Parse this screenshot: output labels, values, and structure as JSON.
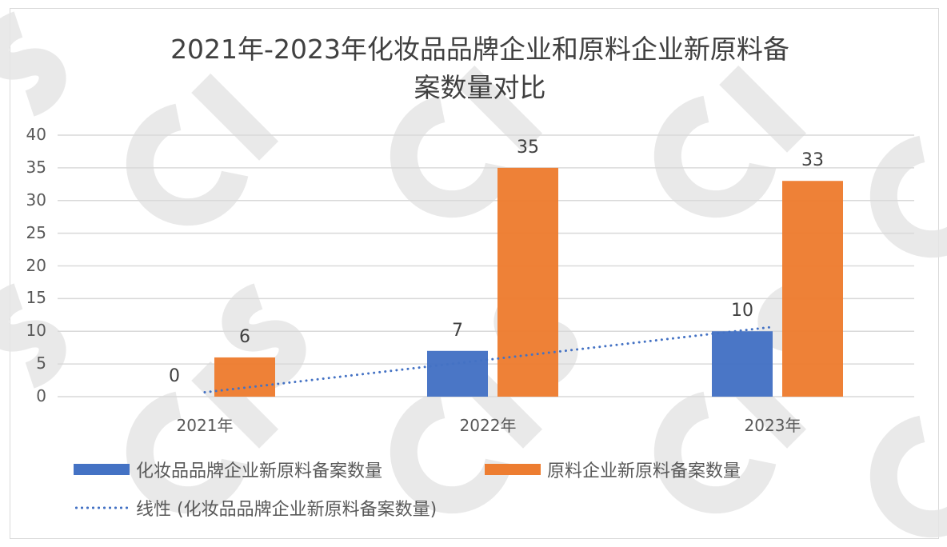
{
  "chart_data": {
    "type": "bar",
    "title": "2021年-2023年化妆品品牌企业和原料企业新原料备案数量对比",
    "title_line1": "2021年-2023年化妆品品牌企业和原料企业新原料备",
    "title_line2": "案数量对比",
    "categories": [
      "2021年",
      "2022年",
      "2023年"
    ],
    "series": [
      {
        "name": "化妆品品牌企业新原料备案数量",
        "values": [
          0,
          7,
          10
        ],
        "color": "#4472c4"
      },
      {
        "name": "原料企业新原料备案数量",
        "values": [
          6,
          35,
          33
        ],
        "color": "#ed7d31"
      }
    ],
    "trendline": {
      "name": "线性 (化妆品品牌企业新原料备案数量)",
      "type": "linear",
      "series": "化妆品品牌企业新原料备案数量",
      "style": "dotted",
      "color": "#4472c4"
    },
    "xlabel": "",
    "ylabel": "",
    "ylim": [
      0,
      40
    ],
    "yticks": [
      "40",
      "35",
      "30",
      "25",
      "20",
      "15",
      "10",
      "5",
      "0"
    ],
    "grid": true,
    "legend_position": "bottom",
    "data_labels": true
  },
  "legend": {
    "item1": "化妆品品牌企业新原料备案数量",
    "item2": "原料企业新原料备案数量",
    "item3": "线性 (化妆品品牌企业新原料备案数量)"
  },
  "watermark": "CIRS"
}
